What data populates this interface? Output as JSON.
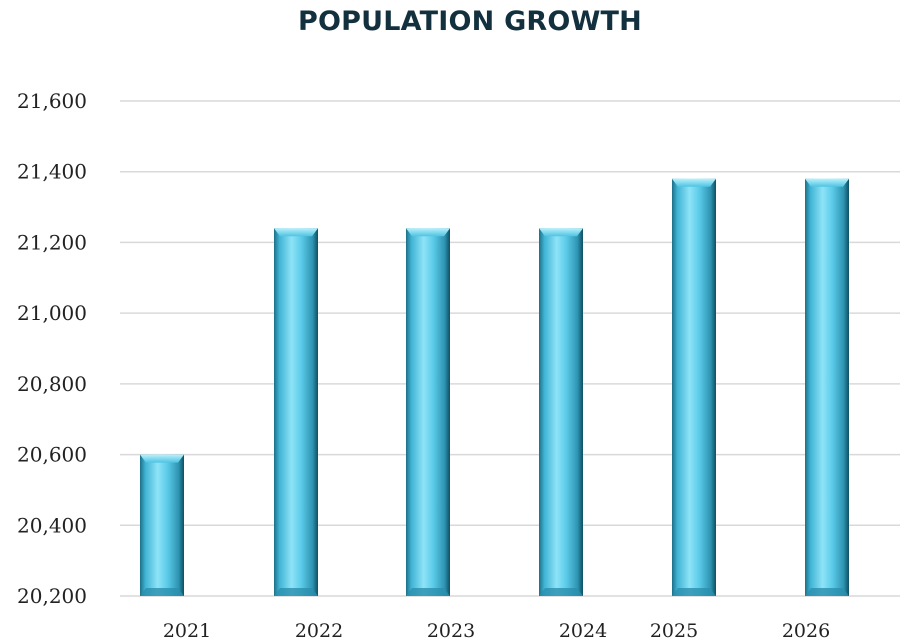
{
  "chart_data": {
    "type": "bar",
    "title": "POPULATION GROWTH",
    "xlabel": "",
    "ylabel": "",
    "categories": [
      "2021",
      "2022",
      "2023",
      "2024",
      "2025",
      "2026"
    ],
    "values": [
      20600,
      21240,
      21240,
      21240,
      21380,
      21380
    ],
    "ylim": [
      20200,
      21600
    ],
    "yticks": [
      "20,200",
      "20,400",
      "20,600",
      "20,800",
      "21,000",
      "21,200",
      "21,400",
      "21,600"
    ],
    "ytick_values": [
      20200,
      20400,
      20600,
      20800,
      21000,
      21200,
      21400,
      21600
    ],
    "grid": true,
    "legend": "none",
    "bar_color": "#5bcbe9",
    "title_color": "#12303d"
  }
}
